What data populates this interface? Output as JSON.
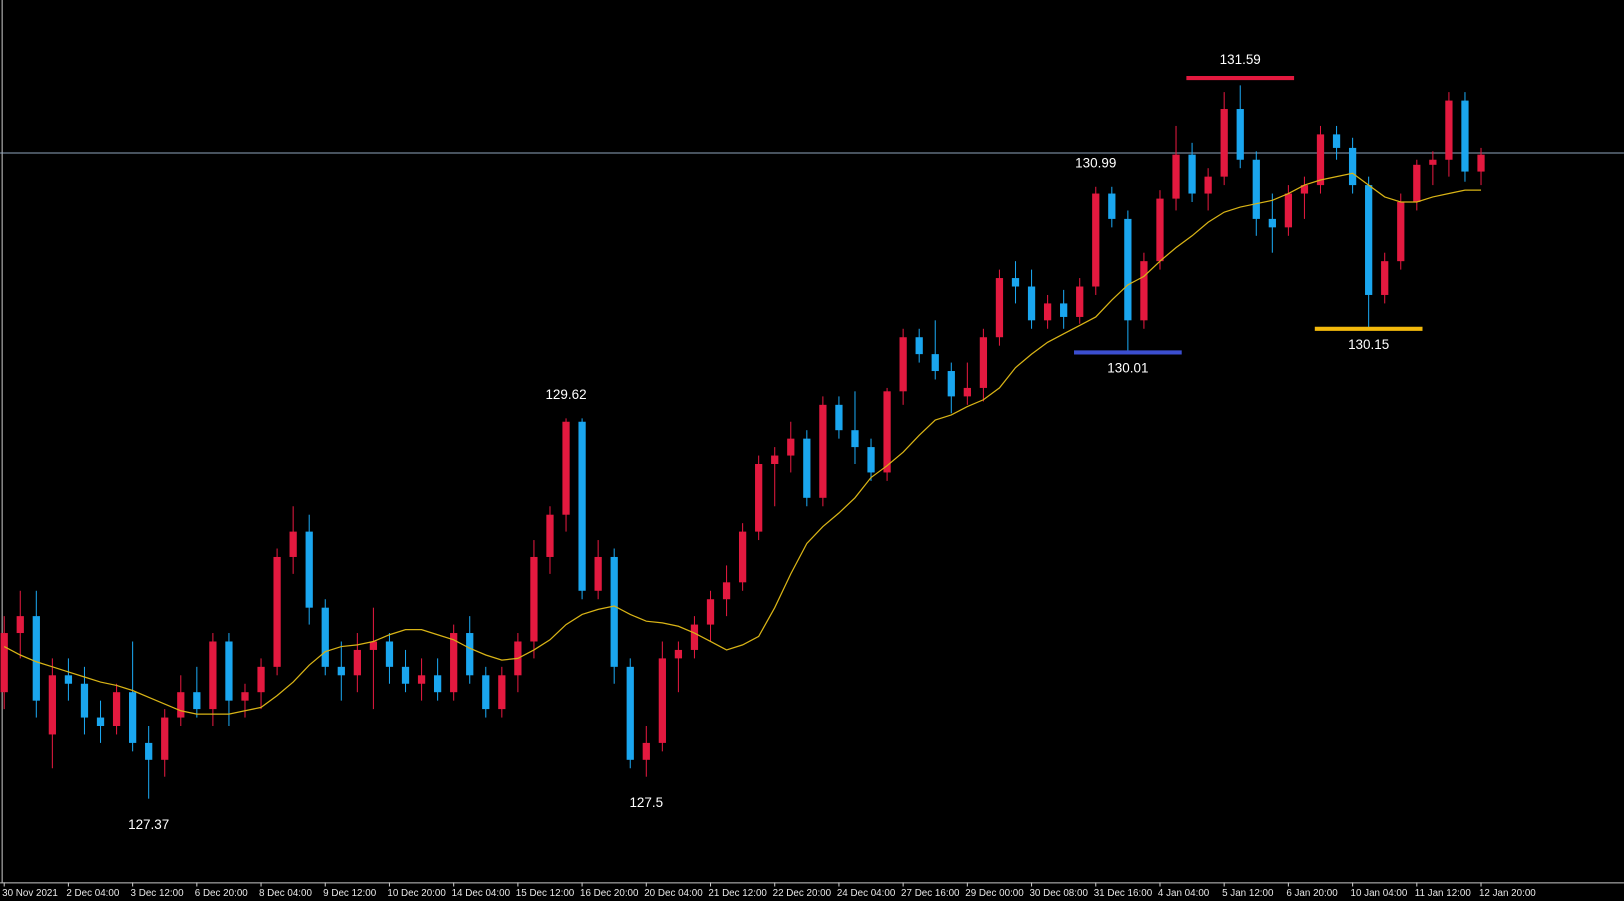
{
  "chart_data": {
    "type": "candlestick",
    "categories": [
      "30 Nov 2021",
      null,
      null,
      null,
      "2 Dec 04:00",
      null,
      null,
      null,
      "3 Dec 12:00",
      null,
      null,
      null,
      "6 Dec 20:00",
      null,
      null,
      null,
      "8 Dec 04:00",
      null,
      null,
      null,
      "9 Dec 12:00",
      null,
      null,
      null,
      "10 Dec 20:00",
      null,
      null,
      null,
      "14 Dec 04:00",
      null,
      null,
      null,
      "15 Dec 12:00",
      null,
      null,
      null,
      "16 Dec 20:00",
      null,
      null,
      null,
      "20 Dec 04:00",
      null,
      null,
      null,
      "21 Dec 12:00",
      null,
      null,
      null,
      "22 Dec 20:00",
      null,
      null,
      null,
      "24 Dec 04:00",
      null,
      null,
      null,
      "27 Dec 16:00",
      null,
      null,
      null,
      "29 Dec 00:00",
      null,
      null,
      null,
      "30 Dec 08:00",
      null,
      null,
      null,
      "31 Dec 16:00",
      null,
      null,
      null,
      "4 Jan 04:00",
      null,
      null,
      null,
      "5 Jan 12:00",
      null,
      null,
      null,
      "6 Jan 20:00",
      null,
      null,
      null,
      "10 Jan 04:00",
      null,
      null,
      null,
      "11 Jan 12:00",
      null,
      null,
      null,
      "12 Jan 20:00"
    ],
    "open": [
      128.0,
      128.35,
      128.45,
      127.75,
      128.1,
      128.05,
      127.85,
      127.8,
      128.0,
      127.7,
      127.6,
      127.85,
      128.0,
      127.9,
      128.3,
      127.95,
      128.0,
      128.15,
      128.8,
      128.95,
      128.5,
      128.15,
      128.1,
      128.25,
      128.3,
      128.15,
      128.05,
      128.1,
      128.0,
      128.35,
      128.1,
      127.9,
      128.1,
      128.3,
      128.8,
      129.05,
      129.6,
      128.6,
      128.8,
      128.15,
      127.6,
      127.7,
      128.2,
      128.25,
      128.4,
      128.55,
      128.65,
      128.95,
      129.35,
      129.4,
      129.5,
      129.15,
      129.7,
      129.55,
      129.45,
      129.3,
      129.78,
      130.1,
      130.0,
      129.9,
      129.75,
      129.8,
      130.1,
      130.45,
      130.4,
      130.2,
      130.3,
      130.22,
      130.4,
      130.95,
      130.8,
      130.2,
      130.55,
      130.92,
      131.18,
      130.95,
      131.05,
      131.45,
      131.15,
      130.8,
      130.75,
      130.95,
      131.0,
      131.3,
      131.22,
      131.0,
      130.35,
      130.55,
      130.9,
      131.12,
      131.15,
      131.5,
      131.08
    ],
    "high": [
      128.45,
      128.6,
      128.6,
      128.2,
      128.2,
      128.15,
      127.95,
      128.05,
      128.3,
      127.8,
      127.9,
      128.1,
      128.15,
      128.35,
      128.35,
      128.05,
      128.2,
      128.85,
      129.1,
      129.05,
      128.55,
      128.3,
      128.35,
      128.5,
      128.35,
      128.25,
      128.2,
      128.2,
      128.4,
      128.45,
      128.15,
      128.15,
      128.35,
      128.9,
      129.1,
      129.62,
      129.62,
      128.9,
      128.85,
      128.2,
      127.8,
      128.3,
      128.3,
      128.45,
      128.6,
      128.75,
      129.0,
      129.4,
      129.45,
      129.6,
      129.55,
      129.75,
      129.75,
      129.78,
      129.5,
      129.8,
      130.15,
      130.15,
      130.2,
      129.95,
      129.95,
      130.15,
      130.5,
      130.55,
      130.5,
      130.35,
      130.38,
      130.45,
      130.99,
      130.99,
      130.85,
      130.6,
      130.97,
      131.35,
      131.25,
      131.1,
      131.55,
      131.59,
      131.2,
      130.95,
      131.0,
      131.05,
      131.35,
      131.35,
      131.28,
      131.05,
      130.6,
      130.95,
      131.15,
      131.2,
      131.55,
      131.55,
      131.22
    ],
    "low": [
      127.9,
      128.2,
      127.85,
      127.55,
      127.95,
      127.75,
      127.7,
      127.75,
      127.65,
      127.37,
      127.5,
      127.8,
      127.85,
      127.8,
      127.8,
      127.85,
      127.9,
      128.1,
      128.7,
      128.4,
      128.1,
      127.95,
      128.0,
      127.9,
      128.05,
      128.0,
      127.95,
      127.95,
      127.95,
      128.05,
      127.85,
      127.85,
      128.0,
      128.2,
      128.7,
      128.95,
      128.55,
      128.55,
      128.05,
      127.55,
      127.5,
      127.65,
      128.0,
      128.2,
      128.3,
      128.45,
      128.6,
      128.9,
      129.1,
      129.3,
      129.1,
      129.1,
      129.5,
      129.35,
      129.25,
      129.25,
      129.7,
      129.95,
      129.85,
      129.65,
      129.7,
      129.72,
      130.05,
      130.3,
      130.15,
      130.15,
      130.15,
      130.18,
      130.35,
      130.75,
      130.01,
      130.15,
      130.5,
      130.85,
      130.9,
      130.85,
      131.0,
      131.1,
      130.7,
      130.6,
      130.7,
      130.8,
      130.95,
      131.15,
      130.95,
      130.15,
      130.3,
      130.5,
      130.85,
      131.0,
      131.05,
      131.02,
      131.0
    ],
    "close": [
      128.35,
      128.45,
      127.95,
      128.1,
      128.05,
      127.85,
      127.8,
      128.0,
      127.7,
      127.6,
      127.85,
      128.0,
      127.9,
      128.3,
      127.95,
      128.0,
      128.15,
      128.8,
      128.95,
      128.5,
      128.15,
      128.1,
      128.25,
      128.3,
      128.15,
      128.05,
      128.1,
      128.0,
      128.35,
      128.1,
      127.9,
      128.1,
      128.3,
      128.8,
      129.05,
      129.6,
      128.6,
      128.8,
      128.15,
      127.6,
      127.7,
      128.2,
      128.25,
      128.4,
      128.55,
      128.65,
      128.95,
      129.35,
      129.4,
      129.5,
      129.15,
      129.7,
      129.55,
      129.45,
      129.3,
      129.78,
      130.1,
      130.0,
      129.9,
      129.75,
      129.8,
      130.1,
      130.45,
      130.4,
      130.2,
      130.3,
      130.22,
      130.4,
      130.95,
      130.8,
      130.2,
      130.55,
      130.92,
      131.18,
      130.95,
      131.05,
      131.45,
      131.15,
      130.8,
      130.75,
      130.95,
      131.0,
      131.3,
      131.22,
      131.0,
      130.35,
      130.55,
      130.9,
      131.12,
      131.15,
      131.5,
      131.08,
      131.18
    ],
    "bull_color": "#e3193f",
    "bear_color": "#1aa6ef",
    "moving_average": {
      "color": "#d9b416",
      "values": [
        128.27,
        128.22,
        128.18,
        128.15,
        128.12,
        128.09,
        128.06,
        128.04,
        128.01,
        127.97,
        127.93,
        127.89,
        127.87,
        127.87,
        127.87,
        127.89,
        127.91,
        127.98,
        128.06,
        128.16,
        128.24,
        128.27,
        128.28,
        128.3,
        128.34,
        128.37,
        128.37,
        128.34,
        128.31,
        128.26,
        128.22,
        128.19,
        128.2,
        128.25,
        128.31,
        128.4,
        128.46,
        128.49,
        128.51,
        128.46,
        128.42,
        128.41,
        128.39,
        128.35,
        128.3,
        128.25,
        128.28,
        128.33,
        128.5,
        128.7,
        128.88,
        128.98,
        129.06,
        129.15,
        129.27,
        129.34,
        129.42,
        129.52,
        129.61,
        129.64,
        129.69,
        129.73,
        129.8,
        129.92,
        130.0,
        130.07,
        130.12,
        130.17,
        130.22,
        130.32,
        130.41,
        130.46,
        130.55,
        130.63,
        130.7,
        130.78,
        130.84,
        130.87,
        130.89,
        130.91,
        130.95,
        131.0,
        131.03,
        131.05,
        131.07,
        131.0,
        130.93,
        130.9,
        130.9,
        130.93,
        130.95,
        130.97,
        130.97
      ]
    },
    "hline": {
      "value": 131.19,
      "color": "#8ea3bc"
    },
    "annotations": [
      {
        "value": 127.37,
        "bar": 9,
        "kind": "low"
      },
      {
        "value": 129.62,
        "bar": 35,
        "kind": "high"
      },
      {
        "value": 127.5,
        "bar": 40,
        "kind": "low"
      },
      {
        "value": 130.99,
        "bar": 68,
        "kind": "high"
      },
      {
        "value": 130.01,
        "bar": 70,
        "kind": "low",
        "color": "#3b4ed0"
      },
      {
        "value": 131.59,
        "bar": 77,
        "kind": "high",
        "color": "#e3193f"
      },
      {
        "value": 130.15,
        "bar": 85,
        "kind": "low",
        "color": "#f2b90c"
      }
    ],
    "ylim": [
      126.875,
      132.095
    ]
  }
}
